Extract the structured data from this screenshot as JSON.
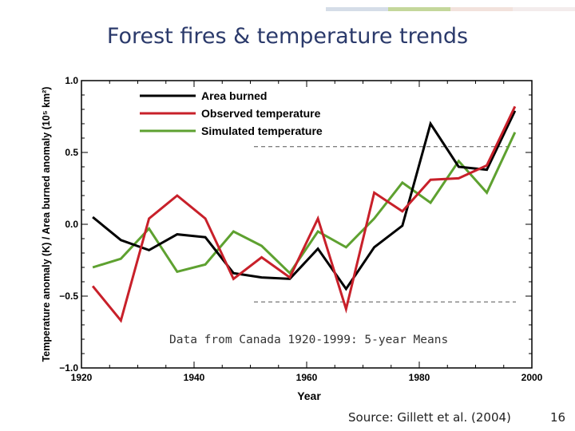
{
  "slide": {
    "title": "Forest fires & temperature trends",
    "source": "Source:  Gillett et al. (2004)",
    "page_number": "16",
    "decor_colors": [
      "#d5dde8",
      "#c4d79b",
      "#f2e2dc",
      "#f3ecec"
    ]
  },
  "chart_data": {
    "type": "line",
    "title": "",
    "xlabel": "Year",
    "ylabel": "Temperature anomaly (K) / Area burned anomaly (10⁵ km²)",
    "xlim": [
      1920,
      2000
    ],
    "ylim": [
      -1.0,
      1.0
    ],
    "xticks": [
      "1920",
      "1940",
      "1960",
      "1980",
      "2000"
    ],
    "yticks": [
      "1.0",
      "0.5",
      "0.0",
      "−0.5",
      "−1.0"
    ],
    "dashed_reference_lines": [
      0.54,
      -0.54
    ],
    "annotation": "Data from Canada 1920-1999: 5-year Means",
    "x": [
      1922,
      1927,
      1932,
      1937,
      1942,
      1947,
      1952,
      1957,
      1962,
      1967,
      1972,
      1977,
      1982,
      1987,
      1992,
      1997
    ],
    "series": [
      {
        "name": "Area burned",
        "color": "#000000",
        "values": [
          0.05,
          -0.11,
          -0.18,
          -0.07,
          -0.09,
          -0.34,
          -0.37,
          -0.38,
          -0.17,
          -0.45,
          -0.16,
          -0.01,
          0.7,
          0.4,
          0.38,
          0.79
        ]
      },
      {
        "name": "Observed temperature",
        "color": "#c8202a",
        "values": [
          -0.43,
          -0.67,
          0.04,
          0.2,
          0.04,
          -0.38,
          -0.23,
          -0.37,
          0.04,
          -0.59,
          0.22,
          0.09,
          0.31,
          0.32,
          0.41,
          0.82
        ]
      },
      {
        "name": "Simulated temperature",
        "color": "#5ea130",
        "values": [
          -0.3,
          -0.24,
          -0.03,
          -0.33,
          -0.28,
          -0.05,
          -0.15,
          -0.34,
          -0.05,
          -0.16,
          0.04,
          0.29,
          0.15,
          0.44,
          0.22,
          0.64
        ]
      }
    ],
    "legend_position": "top-left"
  }
}
